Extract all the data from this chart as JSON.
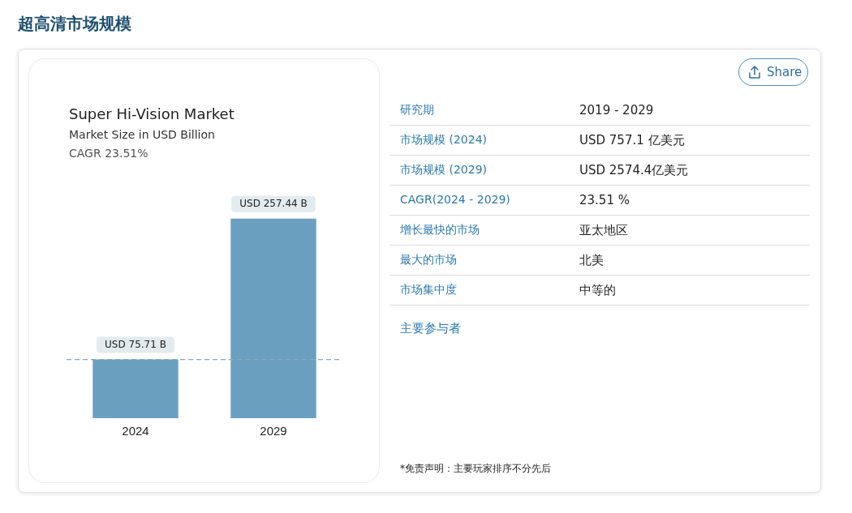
{
  "chart_data": [
    {
      "type": "other",
      "title": "超高清市场规模",
      "annotations": [
        "Share",
        "研究期",
        "2019 - 2029",
        "市场规模 (2024)",
        "USD 757.1 亿美元",
        "市场规模 (2029)",
        "USD 2574.4亿美元",
        "CAGR(2024 - 2029)",
        "23.51 %",
        "增长最快的市场",
        "亚太地区",
        "最大的市场",
        "北美",
        "市场集中度",
        "中等的",
        "主要参与者",
        "*免责声明：主要玩家排序不分先后"
      ]
    },
    {
      "type": "bar",
      "title": "Super Hi-Vision Market",
      "subtitle": "Market Size in USD Billion",
      "annotations": [
        "CAGR 23.51%"
      ],
      "categories": [
        "2024",
        "2029"
      ],
      "values": [
        75.71,
        257.44
      ],
      "color": "#6a9fbf",
      "value_labels": [
        "USD 75.71 B",
        "USD 257.44 B"
      ],
      "ref_lines": [
        {
          "axis": "y",
          "value": 75.71,
          "label": null,
          "color": "#8aa8bd",
          "line_style": "dashed"
        }
      ]
    }
  ]
}
